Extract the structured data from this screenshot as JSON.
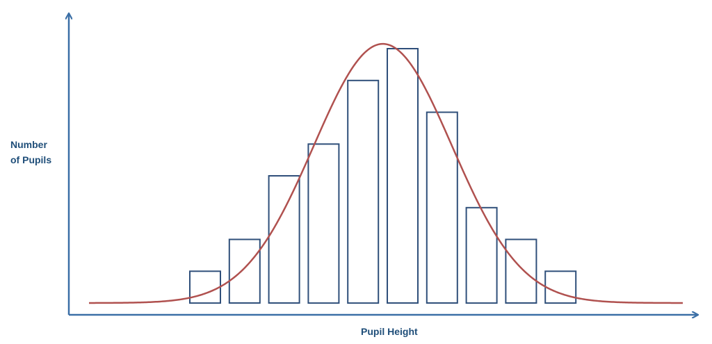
{
  "chart_data": {
    "type": "bar",
    "title": "",
    "xlabel": "Pupil Height",
    "ylabel_lines": [
      "Number",
      "of Pupils"
    ],
    "bins": 10,
    "values": [
      1,
      2,
      4,
      5,
      7,
      8,
      6,
      3,
      2,
      1
    ],
    "ylim": [
      0,
      8.2
    ],
    "curve": {
      "type": "normal",
      "peak": 8.15,
      "mean_bin": 5.0,
      "sd_bins": 1.75
    },
    "grid": false,
    "legend": "none",
    "colors": {
      "bar_stroke": "#2f4f7a",
      "bar_fill": "#ffffff",
      "curve": "#b0514f",
      "axis": "#3b6fa6",
      "text": "#1f4e79"
    }
  }
}
